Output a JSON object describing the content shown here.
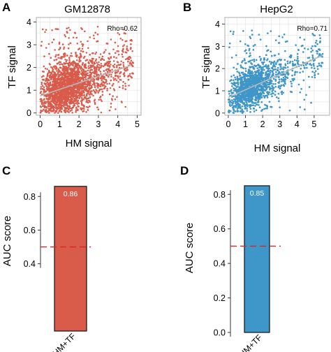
{
  "colors": {
    "gm12878": "#d95b4a",
    "hepg2": "#3f96c8",
    "trend": "#b8b8b8",
    "threshold": "#d62728",
    "grid": "#e6e6e6"
  },
  "panels": {
    "A": {
      "letter": "A",
      "title": "GM12878",
      "annotation": "Rho=0.62",
      "xlabel": "HM signal",
      "ylabel": "TF signal"
    },
    "B": {
      "letter": "B",
      "title": "HepG2",
      "annotation": "Rho=0.71",
      "xlabel": "HM signal",
      "ylabel": "TF signal"
    },
    "C": {
      "letter": "C",
      "ylabel": "AUC score",
      "category": "HM+TF",
      "bar_label": "0.86"
    },
    "D": {
      "letter": "D",
      "ylabel": "AUC score",
      "category": "HM+TF",
      "bar_label": "0.85"
    }
  },
  "chart_data": [
    {
      "panel": "A",
      "type": "scatter",
      "title": "GM12878",
      "xlabel": "HM signal",
      "ylabel": "TF signal",
      "xlim": [
        -0.2,
        5.2
      ],
      "ylim": [
        -0.1,
        4.2
      ],
      "xticks": [
        0,
        1,
        2,
        3,
        4,
        5
      ],
      "yticks": [
        0,
        1,
        2,
        3,
        4
      ],
      "annotation": "Rho=0.62",
      "trend_line": {
        "x": [
          0,
          4.7
        ],
        "y": [
          0.75,
          2.1
        ]
      },
      "point_cloud": {
        "x_range": [
          0,
          4.8
        ],
        "y_range": [
          0,
          3.9
        ],
        "n_points": 3000,
        "note": "dense points, approximate"
      },
      "grid": true
    },
    {
      "panel": "B",
      "type": "scatter",
      "title": "HepG2",
      "xlabel": "HM signal",
      "ylabel": "TF signal",
      "xlim": [
        -0.2,
        5.9
      ],
      "ylim": [
        -0.1,
        4.3
      ],
      "xticks": [
        0,
        1,
        2,
        3,
        4,
        5
      ],
      "yticks": [
        0,
        1,
        2,
        3,
        4
      ],
      "annotation": "Rho=0.71",
      "trend_line": {
        "x": [
          0,
          5.5
        ],
        "y": [
          0.7,
          2.6
        ]
      },
      "point_cloud": {
        "x_range": [
          0,
          5.5
        ],
        "y_range": [
          0,
          3.8
        ],
        "n_points": 3000,
        "note": "dense points, approximate"
      },
      "grid": true
    },
    {
      "panel": "C",
      "type": "bar",
      "categories": [
        "HM+TF"
      ],
      "values": [
        0.86
      ],
      "ylabel": "AUC score",
      "ylim": [
        0.0,
        0.88
      ],
      "yticks": [
        0.4,
        0.6,
        0.8
      ],
      "threshold": 0.5,
      "data_labels": [
        "0.86"
      ],
      "grid": false
    },
    {
      "panel": "D",
      "type": "bar",
      "categories": [
        "HM+TF"
      ],
      "values": [
        0.85
      ],
      "ylabel": "AUC score",
      "ylim": [
        0.0,
        0.87
      ],
      "yticks": [
        0.0,
        0.2,
        0.4,
        0.6,
        0.8
      ],
      "threshold": 0.5,
      "data_labels": [
        "0.85"
      ],
      "grid": false
    }
  ]
}
